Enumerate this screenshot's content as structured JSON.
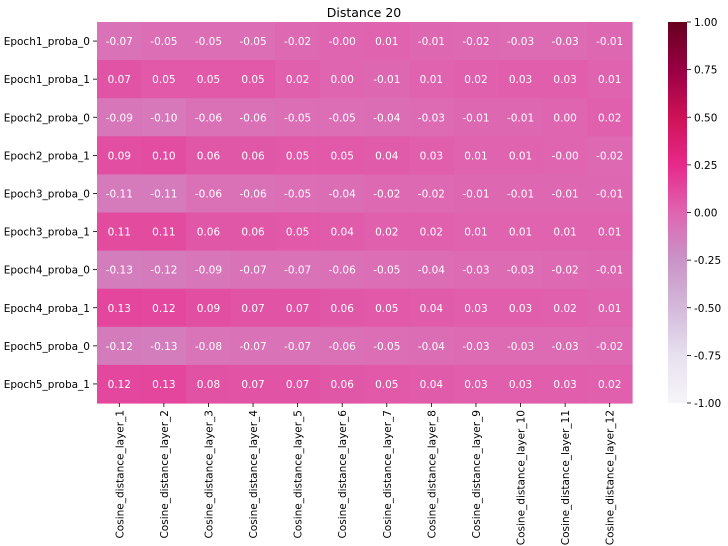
{
  "chart_data": {
    "type": "heatmap",
    "title": "Distance 20",
    "xlabel": "",
    "ylabel": "",
    "rows": [
      "Epoch1_proba_0",
      "Epoch1_proba_1",
      "Epoch2_proba_0",
      "Epoch2_proba_1",
      "Epoch3_proba_0",
      "Epoch3_proba_1",
      "Epoch4_proba_0",
      "Epoch4_proba_1",
      "Epoch5_proba_0",
      "Epoch5_proba_1"
    ],
    "columns": [
      "Cosine_distance_layer_1",
      "Cosine_distance_layer_2",
      "Cosine_distance_layer_3",
      "Cosine_distance_layer_4",
      "Cosine_distance_layer_5",
      "Cosine_distance_layer_6",
      "Cosine_distance_layer_7",
      "Cosine_distance_layer_8",
      "Cosine_distance_layer_9",
      "Cosine_distance_layer_10",
      "Cosine_distance_layer_11",
      "Cosine_distance_layer_12"
    ],
    "values": [
      [
        -0.07,
        -0.05,
        -0.05,
        -0.05,
        -0.02,
        -0.0,
        0.01,
        -0.01,
        -0.02,
        -0.03,
        -0.03,
        -0.01
      ],
      [
        0.07,
        0.05,
        0.05,
        0.05,
        0.02,
        0.0,
        -0.01,
        0.01,
        0.02,
        0.03,
        0.03,
        0.01
      ],
      [
        -0.09,
        -0.1,
        -0.06,
        -0.06,
        -0.05,
        -0.05,
        -0.04,
        -0.03,
        -0.01,
        -0.01,
        0.0,
        0.02
      ],
      [
        0.09,
        0.1,
        0.06,
        0.06,
        0.05,
        0.05,
        0.04,
        0.03,
        0.01,
        0.01,
        -0.0,
        -0.02
      ],
      [
        -0.11,
        -0.11,
        -0.06,
        -0.06,
        -0.05,
        -0.04,
        -0.02,
        -0.02,
        -0.01,
        -0.01,
        -0.01,
        -0.01
      ],
      [
        0.11,
        0.11,
        0.06,
        0.06,
        0.05,
        0.04,
        0.02,
        0.02,
        0.01,
        0.01,
        0.01,
        0.01
      ],
      [
        -0.13,
        -0.12,
        -0.09,
        -0.07,
        -0.07,
        -0.06,
        -0.05,
        -0.04,
        -0.03,
        -0.03,
        -0.02,
        -0.01
      ],
      [
        0.13,
        0.12,
        0.09,
        0.07,
        0.07,
        0.06,
        0.05,
        0.04,
        0.03,
        0.03,
        0.02,
        0.01
      ],
      [
        -0.12,
        -0.13,
        -0.08,
        -0.07,
        -0.07,
        -0.06,
        -0.05,
        -0.04,
        -0.03,
        -0.03,
        -0.03,
        -0.02
      ],
      [
        0.12,
        0.13,
        0.08,
        0.07,
        0.07,
        0.06,
        0.05,
        0.04,
        0.03,
        0.03,
        0.03,
        0.02
      ]
    ],
    "labels": [
      [
        "-0.07",
        "-0.05",
        "-0.05",
        "-0.05",
        "-0.02",
        "-0.00",
        "0.01",
        "-0.01",
        "-0.02",
        "-0.03",
        "-0.03",
        "-0.01"
      ],
      [
        "0.07",
        "0.05",
        "0.05",
        "0.05",
        "0.02",
        "0.00",
        "-0.01",
        "0.01",
        "0.02",
        "0.03",
        "0.03",
        "0.01"
      ],
      [
        "-0.09",
        "-0.10",
        "-0.06",
        "-0.06",
        "-0.05",
        "-0.05",
        "-0.04",
        "-0.03",
        "-0.01",
        "-0.01",
        "0.00",
        "0.02"
      ],
      [
        "0.09",
        "0.10",
        "0.06",
        "0.06",
        "0.05",
        "0.05",
        "0.04",
        "0.03",
        "0.01",
        "0.01",
        "-0.00",
        "-0.02"
      ],
      [
        "-0.11",
        "-0.11",
        "-0.06",
        "-0.06",
        "-0.05",
        "-0.04",
        "-0.02",
        "-0.02",
        "-0.01",
        "-0.01",
        "-0.01",
        "-0.01"
      ],
      [
        "0.11",
        "0.11",
        "0.06",
        "0.06",
        "0.05",
        "0.04",
        "0.02",
        "0.02",
        "0.01",
        "0.01",
        "0.01",
        "0.01"
      ],
      [
        "-0.13",
        "-0.12",
        "-0.09",
        "-0.07",
        "-0.07",
        "-0.06",
        "-0.05",
        "-0.04",
        "-0.03",
        "-0.03",
        "-0.02",
        "-0.01"
      ],
      [
        "0.13",
        "0.12",
        "0.09",
        "0.07",
        "0.07",
        "0.06",
        "0.05",
        "0.04",
        "0.03",
        "0.03",
        "0.02",
        "0.01"
      ],
      [
        "-0.12",
        "-0.13",
        "-0.08",
        "-0.07",
        "-0.07",
        "-0.06",
        "-0.05",
        "-0.04",
        "-0.03",
        "-0.03",
        "-0.03",
        "-0.02"
      ],
      [
        "0.12",
        "0.13",
        "0.08",
        "0.07",
        "0.07",
        "0.06",
        "0.05",
        "0.04",
        "0.03",
        "0.03",
        "0.03",
        "0.02"
      ]
    ],
    "vmin": -1.0,
    "vmax": 1.0,
    "colormap": "PuRd",
    "colormap_stops": [
      {
        "v": -1.0,
        "color": "#f7f4f9"
      },
      {
        "v": -0.75,
        "color": "#e7e1ef"
      },
      {
        "v": -0.5,
        "color": "#d4b9da"
      },
      {
        "v": -0.25,
        "color": "#c994c7"
      },
      {
        "v": 0.0,
        "color": "#df65b0"
      },
      {
        "v": 0.25,
        "color": "#e7298a"
      },
      {
        "v": 0.5,
        "color": "#ce1256"
      },
      {
        "v": 0.75,
        "color": "#980043"
      },
      {
        "v": 1.0,
        "color": "#67001f"
      }
    ],
    "colorbar_ticks": [
      "1.00",
      "0.75",
      "0.50",
      "0.25",
      "0.00",
      "-0.25",
      "-0.50",
      "-0.75",
      "-1.00"
    ],
    "colorbar_tick_values": [
      1.0,
      0.75,
      0.5,
      0.25,
      0.0,
      -0.25,
      -0.5,
      -0.75,
      -1.0
    ],
    "annotation_color": "#ffffff",
    "grid": false,
    "colorbar_placement": "right"
  }
}
